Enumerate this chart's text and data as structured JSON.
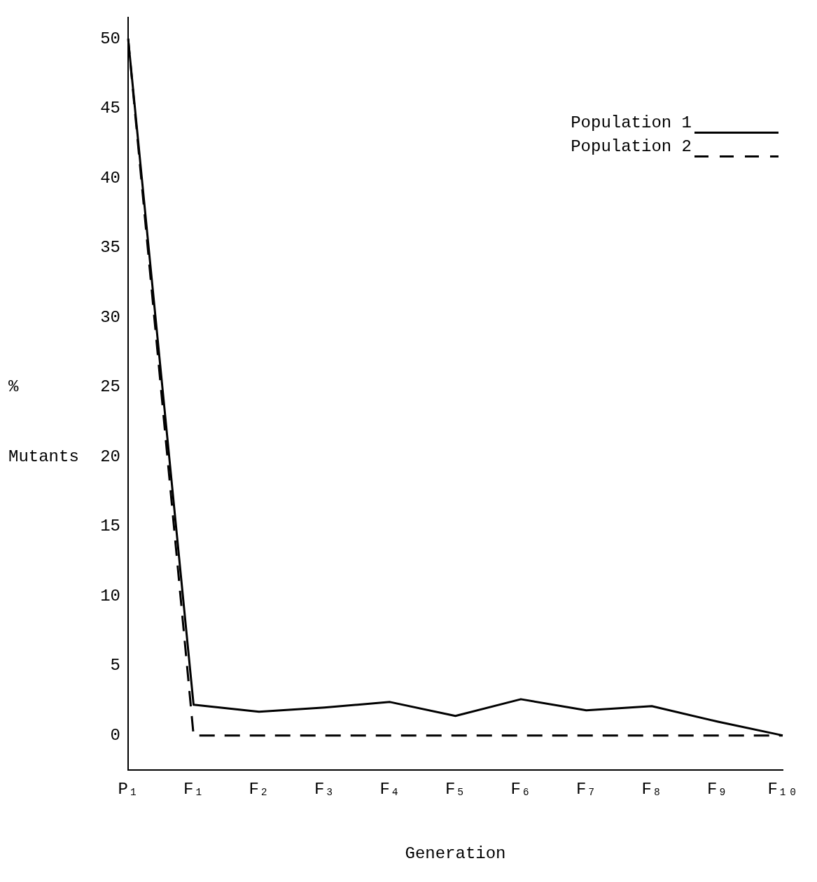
{
  "chart_data": {
    "type": "line",
    "xlabel": "Generation",
    "ylabel": "% Mutants",
    "categories": [
      "P₁",
      "F₁",
      "F₂",
      "F₃",
      "F₄",
      "F₅",
      "F₆",
      "F₇",
      "F₈",
      "F₉",
      "F₁₀"
    ],
    "series": [
      {
        "name": "Population 1",
        "color": "#000000",
        "line_style": "solid",
        "values": [
          50,
          2.2,
          1.7,
          2.0,
          2.4,
          1.4,
          2.6,
          1.8,
          2.1,
          1.0,
          0
        ]
      },
      {
        "name": "Population 2",
        "color": "#000000",
        "line_style": "dashed",
        "values": [
          50,
          0,
          0,
          0,
          0,
          0,
          0,
          0,
          0,
          0,
          0
        ]
      }
    ],
    "ylim": [
      -2.5,
      51.5
    ],
    "yticks": [
      0,
      5,
      10,
      15,
      20,
      25,
      30,
      35,
      40,
      45,
      50
    ],
    "grid": false,
    "legend": "top right",
    "marker": "none"
  }
}
